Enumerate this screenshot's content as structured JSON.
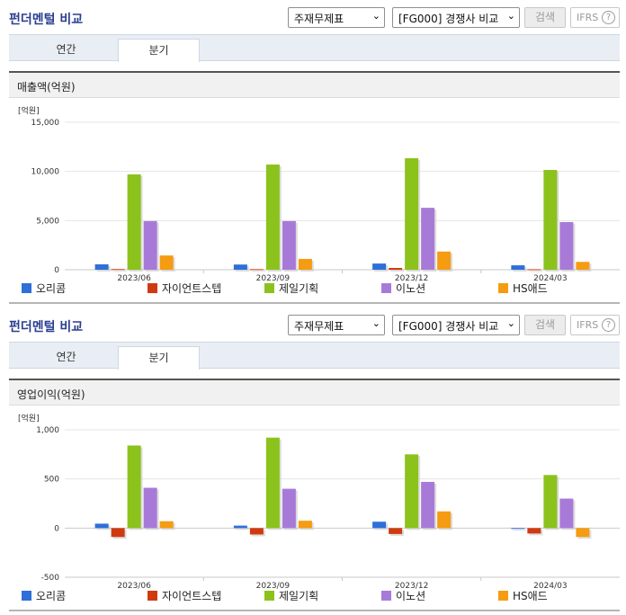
{
  "sections": [
    {
      "header_title": "펀더멘털 비교",
      "select_statement": "주재무제표",
      "select_group": "[FG000] 경쟁사 비교",
      "search_label": "검색",
      "ifrs_label": "IFRS",
      "ifrs_help": "?",
      "tabs": [
        {
          "label": "연간"
        },
        {
          "label": "분기",
          "active": true
        }
      ],
      "panel_title": "매출액(억원)",
      "legend": [
        {
          "label": "오리콤",
          "color": "#2e6fd8"
        },
        {
          "label": "자이언트스텝",
          "color": "#d03a10"
        },
        {
          "label": "제일기획",
          "color": "#8cc21c"
        },
        {
          "label": "이노션",
          "color": "#a87ad8"
        },
        {
          "label": "HS애드",
          "color": "#f59c12"
        }
      ]
    },
    {
      "header_title": "펀더멘털 비교",
      "select_statement": "주재무제표",
      "select_group": "[FG000] 경쟁사 비교",
      "search_label": "검색",
      "ifrs_label": "IFRS",
      "ifrs_help": "?",
      "tabs": [
        {
          "label": "연간"
        },
        {
          "label": "분기",
          "active": true
        }
      ],
      "panel_title": "영업이익(억원)",
      "legend": [
        {
          "label": "오리콤",
          "color": "#2e6fd8"
        },
        {
          "label": "자이언트스텝",
          "color": "#d03a10"
        },
        {
          "label": "제일기획",
          "color": "#8cc21c"
        },
        {
          "label": "이노션",
          "color": "#a87ad8"
        },
        {
          "label": "HS애드",
          "color": "#f59c12"
        }
      ]
    }
  ],
  "chart_data": [
    {
      "type": "bar",
      "unit_label": "[억원]",
      "categories": [
        "2023/06",
        "2023/09",
        "2023/12",
        "2024/03"
      ],
      "ylim": [
        0,
        15000
      ],
      "yticks": [
        "0",
        "5,000",
        "10,000",
        "15,000"
      ],
      "ytick_values": [
        0,
        5000,
        10000,
        15000
      ],
      "grid": true,
      "legend_position": "bottom",
      "series": [
        {
          "name": "오리콤",
          "color": "#2e6fd8",
          "values": [
            550,
            530,
            630,
            450
          ]
        },
        {
          "name": "자이언트스텝",
          "color": "#d03a10",
          "values": [
            70,
            60,
            180,
            50
          ]
        },
        {
          "name": "제일기획",
          "color": "#8cc21c",
          "values": [
            9700,
            10700,
            11350,
            10150
          ]
        },
        {
          "name": "이노션",
          "color": "#a87ad8",
          "values": [
            4950,
            4950,
            6300,
            4850
          ]
        },
        {
          "name": "HS애드",
          "color": "#f59c12",
          "values": [
            1450,
            1100,
            1850,
            800
          ]
        }
      ]
    },
    {
      "type": "bar",
      "unit_label": "[억원]",
      "categories": [
        "2023/06",
        "2023/09",
        "2023/12",
        "2024/03"
      ],
      "ylim": [
        -500,
        1000
      ],
      "yticks": [
        "-500",
        "0",
        "500",
        "1,000"
      ],
      "ytick_values": [
        -500,
        0,
        500,
        1000
      ],
      "grid": true,
      "legend_position": "bottom",
      "series": [
        {
          "name": "오리콤",
          "color": "#2e6fd8",
          "values": [
            45,
            25,
            65,
            -5
          ]
        },
        {
          "name": "자이언트스텝",
          "color": "#d03a10",
          "values": [
            -90,
            -65,
            -60,
            -55
          ]
        },
        {
          "name": "제일기획",
          "color": "#8cc21c",
          "values": [
            840,
            920,
            750,
            540
          ]
        },
        {
          "name": "이노션",
          "color": "#a87ad8",
          "values": [
            410,
            400,
            470,
            300
          ]
        },
        {
          "name": "HS애드",
          "color": "#f59c12",
          "values": [
            70,
            75,
            170,
            -90
          ]
        }
      ]
    }
  ]
}
